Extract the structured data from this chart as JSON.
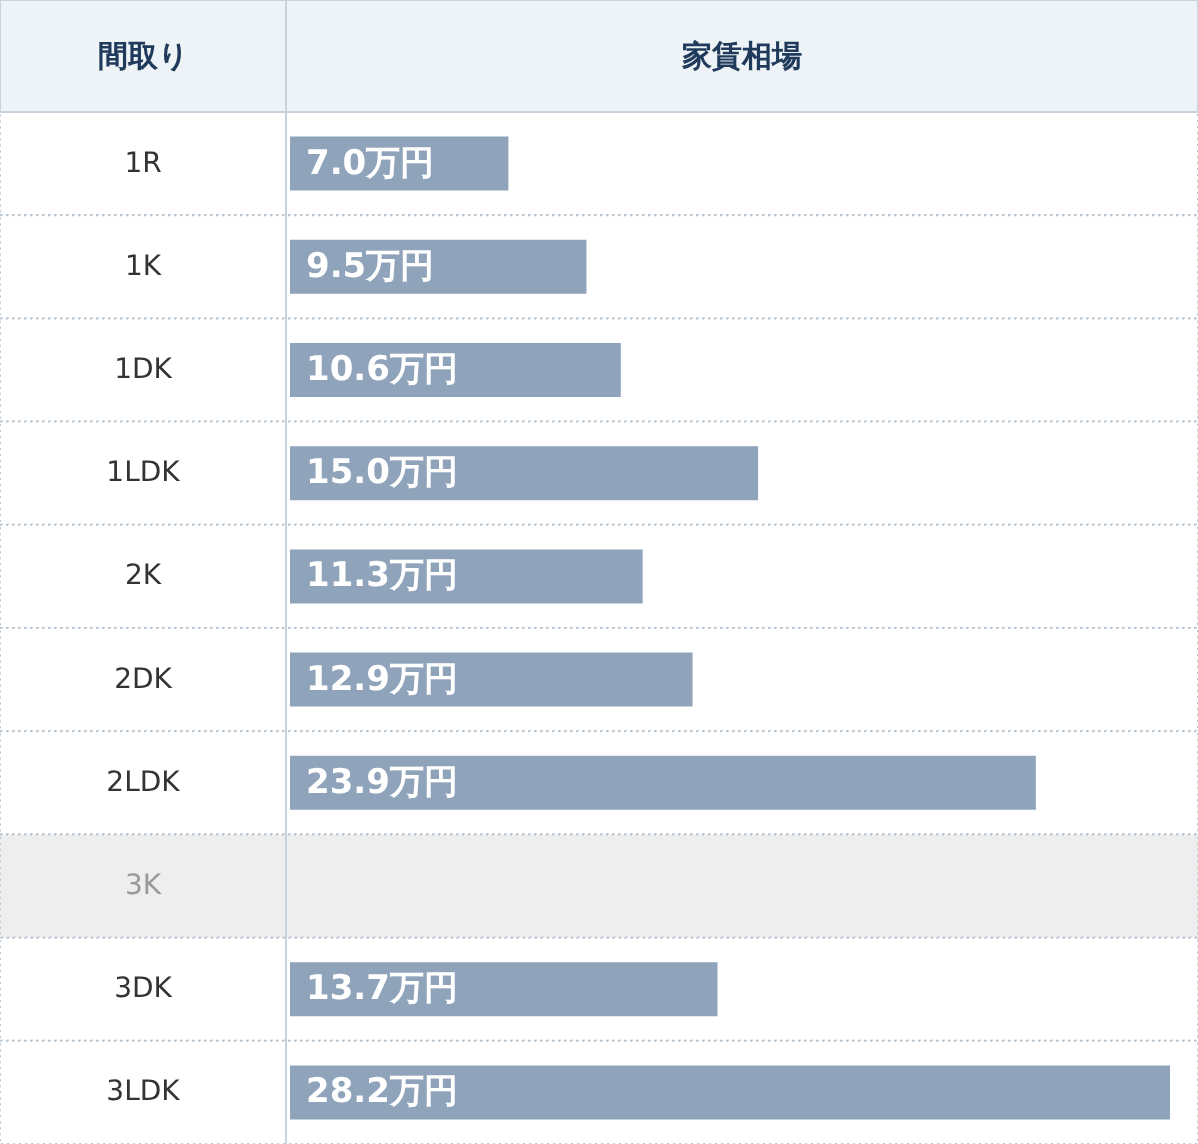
{
  "chart_data": {
    "type": "bar",
    "orientation": "horizontal",
    "ylabel": "間取り",
    "xlabel": "家賃相場",
    "categories": [
      "1R",
      "1K",
      "1DK",
      "1LDK",
      "2K",
      "2DK",
      "2LDK",
      "3K",
      "3DK",
      "3LDK"
    ],
    "values": [
      7.0,
      9.5,
      10.6,
      15.0,
      11.3,
      12.9,
      23.9,
      null,
      13.7,
      28.2
    ],
    "value_labels": [
      "7.0万円",
      "9.5万円",
      "10.6万円",
      "15.0万円",
      "11.3万円",
      "12.9万円",
      "23.9万円",
      null,
      "13.7万円",
      "28.2万円"
    ],
    "color": "#8fa3bb",
    "bands": [
      {
        "axis": "y",
        "from": "3K",
        "to": "3K",
        "color": "#eeeeee"
      }
    ]
  }
}
